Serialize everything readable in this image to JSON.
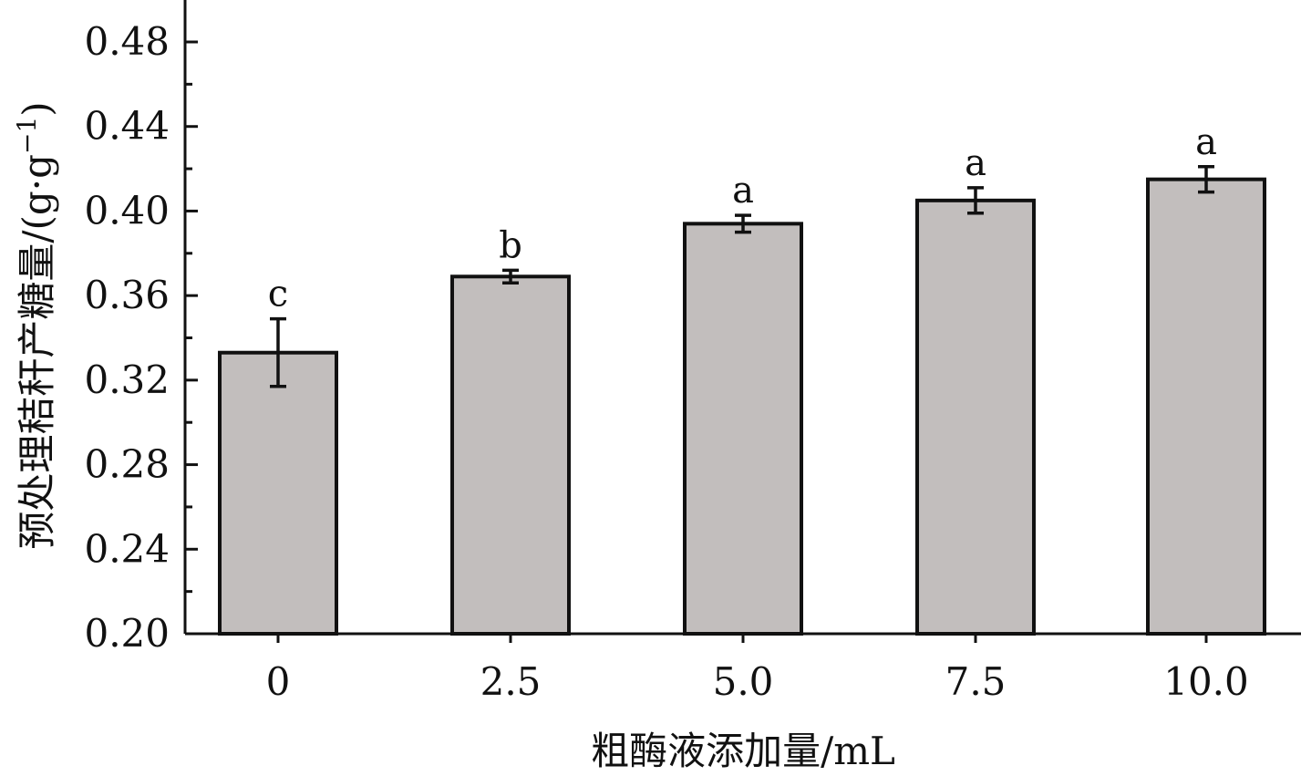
{
  "chart_data": {
    "type": "bar",
    "categories": [
      "0",
      "2.5",
      "5.0",
      "7.5",
      "10.0"
    ],
    "values": [
      0.333,
      0.369,
      0.394,
      0.405,
      0.415
    ],
    "errors": [
      0.016,
      0.003,
      0.004,
      0.006,
      0.006
    ],
    "significance": [
      "c",
      "b",
      "a",
      "a",
      "a"
    ],
    "xlabel": "粗酶液添加量/mL",
    "ylabel": "预处理秸秆产糖量/(g·g",
    "ylabel_sup": "−1",
    "ylabel_tail": ")",
    "ylim": [
      0.2,
      0.5
    ],
    "yticks": [
      "0.20",
      "0.24",
      "0.28",
      "0.32",
      "0.36",
      "0.40",
      "0.44",
      "0.48"
    ],
    "bar_color": "#c2bebd",
    "grid": false
  }
}
